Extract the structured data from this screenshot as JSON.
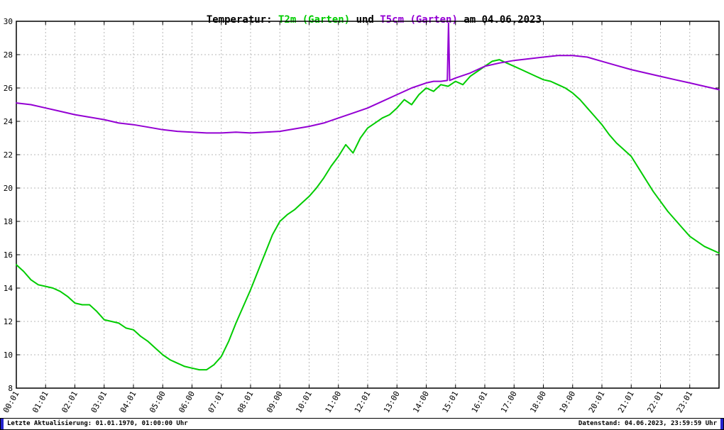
{
  "title": {
    "prefix": "Temperatur: ",
    "series1": "T2m (Garten)",
    "mid": " und ",
    "series2": "T5cm (Garten)",
    "suffix": " am 04.06.2023"
  },
  "footer": {
    "left": "Letzte Aktualisierung: 01.01.1970, 01:00:00 Uhr",
    "right": "Datenstand: 04.06.2023, 23:59:59 Uhr"
  },
  "chart_data": {
    "type": "line",
    "title": "Temperatur: T2m (Garten) und T5cm (Garten) am 04.06.2023",
    "xlabel": "",
    "ylabel": "",
    "grid": true,
    "legend_position": "none",
    "ylim": [
      8,
      30
    ],
    "xlim_hours": [
      0,
      24
    ],
    "y_ticks": [
      8,
      10,
      12,
      14,
      16,
      18,
      20,
      22,
      24,
      26,
      28,
      30
    ],
    "x_tick_hours": [
      0,
      1,
      2,
      3,
      4,
      5,
      6,
      7,
      8,
      9,
      10,
      11,
      12,
      13,
      14,
      15,
      16,
      17,
      18,
      19,
      20,
      21,
      22,
      23
    ],
    "x_tick_labels": [
      "00:01",
      "01:01",
      "02:01",
      "03:01",
      "04:01",
      "05:00",
      "06:00",
      "07:01",
      "08:01",
      "09:00",
      "10:01",
      "11:00",
      "12:01",
      "13:00",
      "14:00",
      "15:01",
      "16:01",
      "17:00",
      "18:00",
      "19:00",
      "20:01",
      "21:01",
      "22:01",
      "23:01"
    ],
    "grid_color": "#b8b8b8",
    "series": [
      {
        "name": "T2m (Garten)",
        "color": "#00cc00",
        "points": [
          [
            0.0,
            15.4
          ],
          [
            0.25,
            15.0
          ],
          [
            0.5,
            14.5
          ],
          [
            0.75,
            14.2
          ],
          [
            1.0,
            14.1
          ],
          [
            1.25,
            14.0
          ],
          [
            1.5,
            13.8
          ],
          [
            1.75,
            13.5
          ],
          [
            2.0,
            13.1
          ],
          [
            2.25,
            13.0
          ],
          [
            2.5,
            13.0
          ],
          [
            2.75,
            12.6
          ],
          [
            3.0,
            12.1
          ],
          [
            3.25,
            12.0
          ],
          [
            3.5,
            11.9
          ],
          [
            3.75,
            11.6
          ],
          [
            4.0,
            11.5
          ],
          [
            4.25,
            11.1
          ],
          [
            4.5,
            10.8
          ],
          [
            4.75,
            10.4
          ],
          [
            5.0,
            10.0
          ],
          [
            5.25,
            9.7
          ],
          [
            5.5,
            9.5
          ],
          [
            5.75,
            9.3
          ],
          [
            6.0,
            9.2
          ],
          [
            6.25,
            9.1
          ],
          [
            6.5,
            9.1
          ],
          [
            6.75,
            9.4
          ],
          [
            7.0,
            9.9
          ],
          [
            7.25,
            10.8
          ],
          [
            7.5,
            11.9
          ],
          [
            7.75,
            12.9
          ],
          [
            8.0,
            13.9
          ],
          [
            8.25,
            15.0
          ],
          [
            8.5,
            16.1
          ],
          [
            8.75,
            17.2
          ],
          [
            9.0,
            18.0
          ],
          [
            9.25,
            18.4
          ],
          [
            9.5,
            18.7
          ],
          [
            9.75,
            19.1
          ],
          [
            10.0,
            19.5
          ],
          [
            10.25,
            20.0
          ],
          [
            10.5,
            20.6
          ],
          [
            10.75,
            21.3
          ],
          [
            11.0,
            21.9
          ],
          [
            11.25,
            22.6
          ],
          [
            11.5,
            22.1
          ],
          [
            11.75,
            23.0
          ],
          [
            12.0,
            23.6
          ],
          [
            12.25,
            23.9
          ],
          [
            12.5,
            24.2
          ],
          [
            12.75,
            24.4
          ],
          [
            13.0,
            24.8
          ],
          [
            13.25,
            25.3
          ],
          [
            13.5,
            25.0
          ],
          [
            13.75,
            25.6
          ],
          [
            14.0,
            26.0
          ],
          [
            14.25,
            25.8
          ],
          [
            14.5,
            26.2
          ],
          [
            14.75,
            26.1
          ],
          [
            15.0,
            26.4
          ],
          [
            15.25,
            26.2
          ],
          [
            15.5,
            26.7
          ],
          [
            15.75,
            27.0
          ],
          [
            16.0,
            27.3
          ],
          [
            16.25,
            27.6
          ],
          [
            16.5,
            27.7
          ],
          [
            16.75,
            27.5
          ],
          [
            17.0,
            27.3
          ],
          [
            17.25,
            27.1
          ],
          [
            17.5,
            26.9
          ],
          [
            17.75,
            26.7
          ],
          [
            18.0,
            26.5
          ],
          [
            18.25,
            26.4
          ],
          [
            18.5,
            26.2
          ],
          [
            18.75,
            26.0
          ],
          [
            19.0,
            25.7
          ],
          [
            19.25,
            25.3
          ],
          [
            19.5,
            24.8
          ],
          [
            19.75,
            24.3
          ],
          [
            20.0,
            23.8
          ],
          [
            20.25,
            23.2
          ],
          [
            20.5,
            22.7
          ],
          [
            20.75,
            22.3
          ],
          [
            21.0,
            21.9
          ],
          [
            21.25,
            21.2
          ],
          [
            21.5,
            20.5
          ],
          [
            21.75,
            19.8
          ],
          [
            22.0,
            19.2
          ],
          [
            22.25,
            18.6
          ],
          [
            22.5,
            18.1
          ],
          [
            22.75,
            17.6
          ],
          [
            23.0,
            17.1
          ],
          [
            23.25,
            16.8
          ],
          [
            23.5,
            16.5
          ],
          [
            23.75,
            16.3
          ],
          [
            24.0,
            16.1
          ]
        ]
      },
      {
        "name": "T5cm (Garten)",
        "color": "#9400d3",
        "points": [
          [
            0.0,
            25.1
          ],
          [
            0.5,
            25.0
          ],
          [
            1.0,
            24.8
          ],
          [
            1.5,
            24.6
          ],
          [
            2.0,
            24.4
          ],
          [
            2.5,
            24.25
          ],
          [
            3.0,
            24.1
          ],
          [
            3.5,
            23.9
          ],
          [
            4.0,
            23.8
          ],
          [
            4.5,
            23.65
          ],
          [
            5.0,
            23.5
          ],
          [
            5.5,
            23.4
          ],
          [
            6.0,
            23.35
          ],
          [
            6.5,
            23.3
          ],
          [
            7.0,
            23.3
          ],
          [
            7.5,
            23.35
          ],
          [
            8.0,
            23.3
          ],
          [
            8.5,
            23.35
          ],
          [
            9.0,
            23.4
          ],
          [
            9.5,
            23.55
          ],
          [
            10.0,
            23.7
          ],
          [
            10.5,
            23.9
          ],
          [
            11.0,
            24.2
          ],
          [
            11.5,
            24.5
          ],
          [
            12.0,
            24.8
          ],
          [
            12.5,
            25.2
          ],
          [
            13.0,
            25.6
          ],
          [
            13.5,
            26.0
          ],
          [
            14.0,
            26.3
          ],
          [
            14.25,
            26.4
          ],
          [
            14.5,
            26.4
          ],
          [
            14.72,
            26.45
          ],
          [
            14.76,
            29.9
          ],
          [
            14.8,
            26.45
          ],
          [
            15.0,
            26.6
          ],
          [
            15.5,
            26.9
          ],
          [
            16.0,
            27.3
          ],
          [
            16.5,
            27.5
          ],
          [
            17.0,
            27.65
          ],
          [
            17.5,
            27.75
          ],
          [
            18.0,
            27.85
          ],
          [
            18.5,
            27.95
          ],
          [
            19.0,
            27.95
          ],
          [
            19.5,
            27.85
          ],
          [
            20.0,
            27.6
          ],
          [
            20.5,
            27.35
          ],
          [
            21.0,
            27.1
          ],
          [
            21.5,
            26.9
          ],
          [
            22.0,
            26.7
          ],
          [
            22.5,
            26.5
          ],
          [
            23.0,
            26.3
          ],
          [
            23.5,
            26.1
          ],
          [
            24.0,
            25.9
          ]
        ]
      }
    ]
  }
}
